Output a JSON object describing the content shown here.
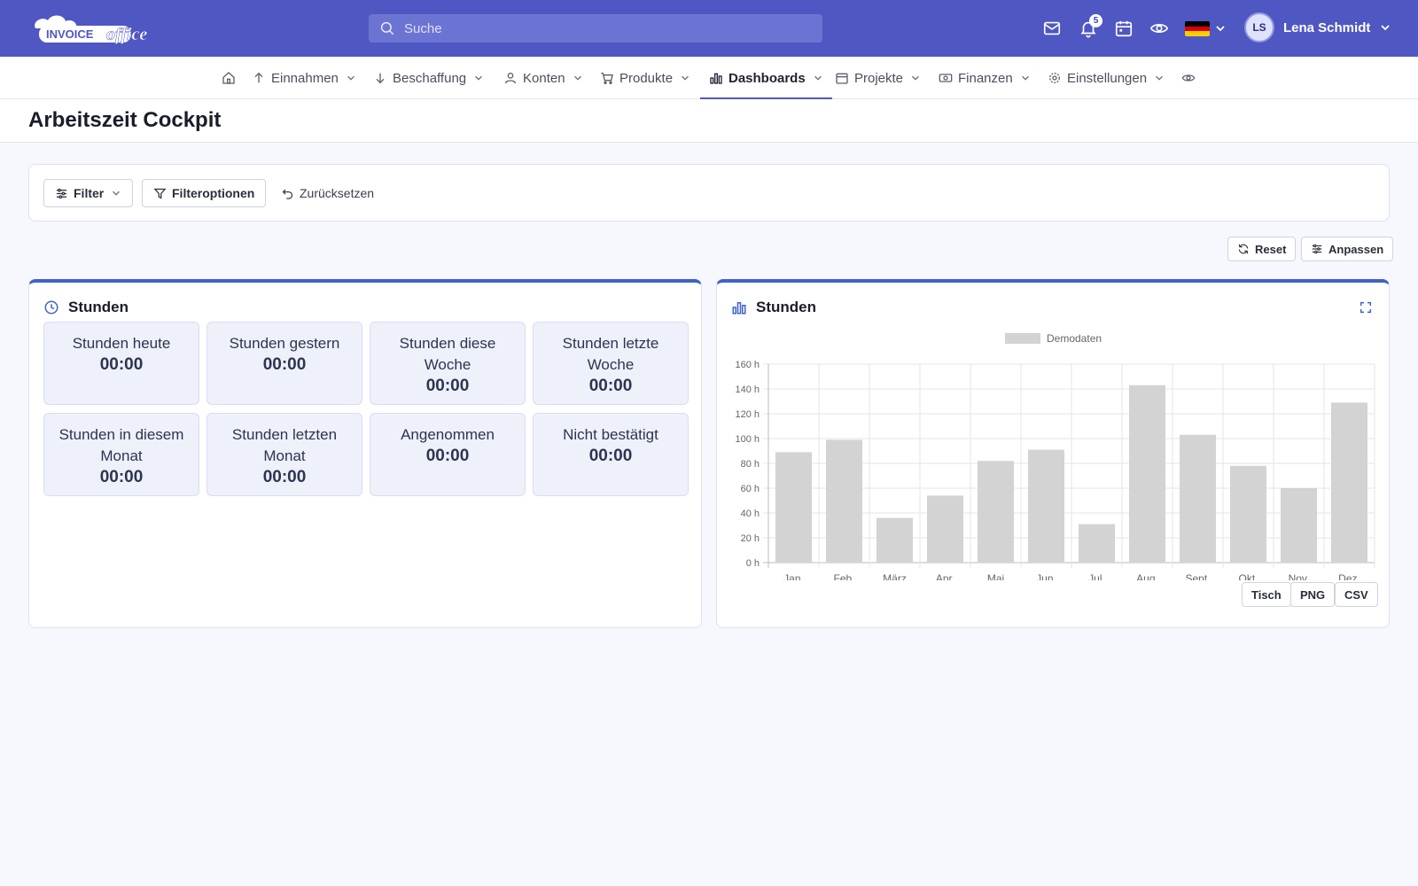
{
  "app": {
    "logo_word1": "INVOICE",
    "logo_word2": "office",
    "search_placeholder": "Suche",
    "notification_count": "5",
    "user_initials": "LS",
    "user_name": "Lena Schmidt"
  },
  "nav": {
    "items": [
      {
        "label": "Einnahmen",
        "icon": "arrow-up-icon"
      },
      {
        "label": "Beschaffung",
        "icon": "arrow-down-icon"
      },
      {
        "label": "Konten",
        "icon": "user-icon"
      },
      {
        "label": "Produkte",
        "icon": "cart-icon"
      },
      {
        "label": "Dashboards",
        "icon": "bar-chart-icon",
        "active": true
      },
      {
        "label": "Projekte",
        "icon": "calendar-icon"
      },
      {
        "label": "Finanzen",
        "icon": "money-icon"
      },
      {
        "label": "Einstellungen",
        "icon": "gear-icon"
      }
    ]
  },
  "page": {
    "title": "Arbeitszeit Cockpit"
  },
  "filters": {
    "filter_label": "Filter",
    "options_label": "Filteroptionen",
    "reset_label": "Zurücksetzen"
  },
  "actions": {
    "reset_label": "Reset",
    "customize_label": "Anpassen"
  },
  "stats_card": {
    "title": "Stunden",
    "tiles": [
      {
        "label": "Stunden heute",
        "value": "00:00"
      },
      {
        "label": "Stunden gestern",
        "value": "00:00"
      },
      {
        "label": "Stunden diese Woche",
        "value": "00:00"
      },
      {
        "label": "Stunden letzte Woche",
        "value": "00:00"
      },
      {
        "label": "Stunden in diesem Monat",
        "value": "00:00"
      },
      {
        "label": "Stunden letzten Monat",
        "value": "00:00"
      },
      {
        "label": "Angenommen",
        "value": "00:00"
      },
      {
        "label": "Nicht bestätigt",
        "value": "00:00"
      }
    ]
  },
  "chart_card": {
    "title": "Stunden",
    "export": {
      "table_label": "Tisch",
      "png_label": "PNG",
      "csv_label": "CSV"
    }
  },
  "chart_data": {
    "type": "bar",
    "title": "",
    "xlabel": "",
    "ylabel": "",
    "legend": "top-center",
    "grid": true,
    "categories": [
      "Jan.",
      "Feb.",
      "März",
      "Apr.",
      "Mai",
      "Jun.",
      "Jul.",
      "Aug.",
      "Sept.",
      "Okt.",
      "Nov.",
      "Dez."
    ],
    "series": [
      {
        "name": "Demodaten",
        "values": [
          89,
          99,
          36,
          54,
          82,
          91,
          31,
          143,
          103,
          78,
          60,
          129
        ],
        "color": "#d3d3d3"
      }
    ],
    "ylim": [
      0,
      160
    ],
    "yticks": [
      0,
      20,
      40,
      60,
      80,
      100,
      120,
      140,
      160
    ],
    "ytick_labels": [
      "0 h",
      "20 h",
      "40 h",
      "60 h",
      "80 h",
      "100 h",
      "120 h",
      "140 h",
      "160 h"
    ]
  },
  "colors": {
    "brand": "#4f57c2",
    "accent": "#3d63c9",
    "tile_bg": "#eef0fa"
  }
}
